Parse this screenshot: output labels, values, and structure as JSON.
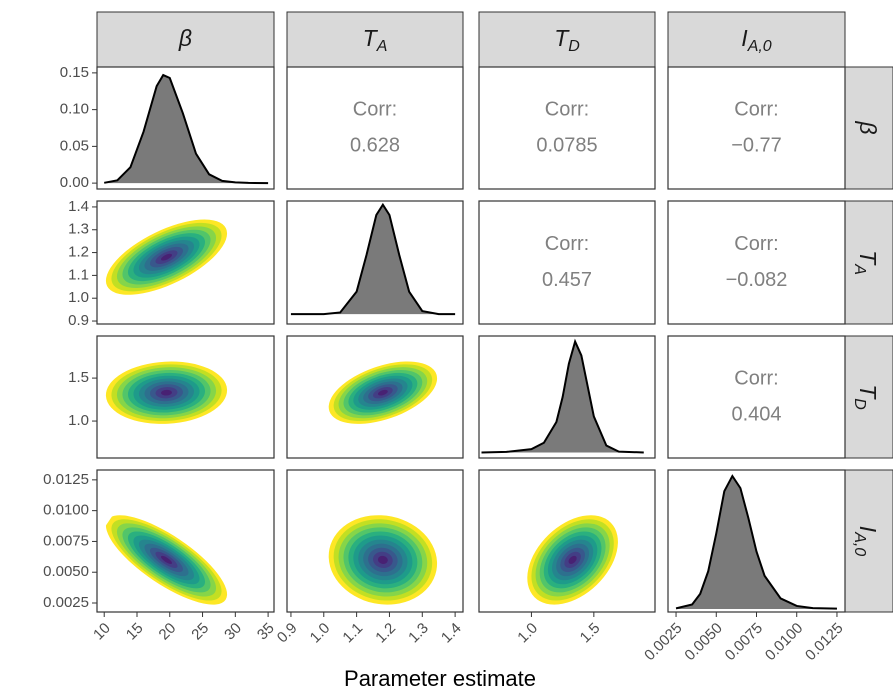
{
  "chart_data": {
    "type": "pairs",
    "xlabel": "Parameter estimate",
    "variables": [
      {
        "symbol": "β",
        "subscript": null,
        "mean": 19.5,
        "sd": 2.8,
        "xlim": [
          8.9,
          35.9
        ],
        "xticks": [
          10,
          15,
          20,
          25,
          30,
          35
        ],
        "ylim": [
          -0.008,
          0.158
        ],
        "yticks": [
          {
            "value": 0,
            "label": "0.00"
          },
          0.05,
          {
            "value": 0.1,
            "label": "0.10"
          },
          0.15
        ]
      },
      {
        "symbol": "T",
        "subscript": "A",
        "mean": 1.18,
        "sd": 0.05,
        "xlim": [
          0.888,
          1.424
        ],
        "xticks": [
          0.9,
          {
            "value": 1,
            "label": "1.0"
          },
          1.1,
          1.2,
          1.3,
          1.4
        ],
        "ylim": [
          0.887,
          1.426
        ],
        "yticks": [
          0.9,
          {
            "value": 1,
            "label": "1.0"
          },
          1.1,
          1.2,
          1.3,
          1.4
        ]
      },
      {
        "symbol": "T",
        "subscript": "D",
        "mean": 1.33,
        "sd": 0.11,
        "xlim": [
          0.58,
          1.99
        ],
        "xticks": [
          {
            "value": 1,
            "label": "1.0"
          },
          1.5
        ],
        "ylim": [
          0.57,
          1.99
        ],
        "yticks": [
          {
            "value": 1,
            "label": "1.0"
          },
          1.5
        ]
      },
      {
        "symbol": "I",
        "subscript": "A,0",
        "mean": 0.006,
        "sd": 0.0011,
        "xlim": [
          0.002,
          0.013
        ],
        "xticks": [
          0.0025,
          {
            "value": 0.005,
            "label": "0.0050"
          },
          0.0075,
          {
            "value": 0.01,
            "label": "0.0100"
          },
          0.0125
        ],
        "ylim": [
          0.00177,
          0.0133
        ],
        "yticks": [
          0.0025,
          {
            "value": 0.005,
            "label": "0.0050"
          },
          0.0075,
          {
            "value": 0.01,
            "label": "0.0100"
          },
          0.0125
        ]
      }
    ],
    "diagonals": [
      {
        "x": [
          10,
          12,
          14,
          16,
          18,
          19,
          20,
          22,
          24,
          26,
          28,
          30,
          32,
          35
        ],
        "y": [
          0.0004,
          0.0038,
          0.0217,
          0.07,
          0.132,
          0.147,
          0.143,
          0.095,
          0.04,
          0.012,
          0.003,
          0.001,
          0.0003,
          0
        ]
      },
      {
        "x": [
          0.9,
          1.0,
          1.05,
          1.1,
          1.13,
          1.16,
          1.18,
          1.2,
          1.23,
          1.26,
          1.3,
          1.35,
          1.4
        ],
        "y": [
          0,
          0.003,
          0.14,
          1.83,
          4.8,
          8.06,
          8.9,
          8.06,
          4.8,
          1.83,
          0.25,
          0.007,
          0
        ],
        "ylim": [
          -0.8,
          9.2
        ]
      },
      {
        "x": [
          0.6,
          0.8,
          1.0,
          1.1,
          1.2,
          1.25,
          1.3,
          1.35,
          1.4,
          1.45,
          1.5,
          1.6,
          1.7,
          1.9
        ],
        "y": [
          0,
          0.02,
          0.12,
          0.35,
          1.1,
          2.0,
          3.2,
          4.0,
          3.5,
          2.4,
          1.3,
          0.25,
          0.03,
          0
        ],
        "ylim": [
          -0.2,
          4.2
        ]
      },
      {
        "x": [
          0.0025,
          0.0035,
          0.004,
          0.0045,
          0.005,
          0.0055,
          0.006,
          0.0065,
          0.007,
          0.0075,
          0.008,
          0.009,
          0.01,
          0.011,
          0.0125
        ],
        "y": [
          2,
          15,
          50,
          125,
          250,
          390,
          440,
          400,
          300,
          190,
          110,
          35,
          10,
          3,
          1
        ],
        "ylim": [
          -10,
          460
        ]
      }
    ],
    "correlations": {
      "label": "Corr:",
      "values": [
        0.628,
        0.0785,
        -0.77,
        0.457,
        -0.082,
        0.404
      ],
      "value_labels": [
        "0.628",
        "0.0785",
        "−0.77",
        "0.457",
        "−0.082",
        "0.404"
      ]
    },
    "palette": [
      "#fde725",
      "#c2df23",
      "#86d549",
      "#52c569",
      "#2ab07f",
      "#1e9b8a",
      "#25858e",
      "#2d708e",
      "#38588c",
      "#433e85",
      "#482173"
    ],
    "density_fill": "#7a7a7a"
  }
}
